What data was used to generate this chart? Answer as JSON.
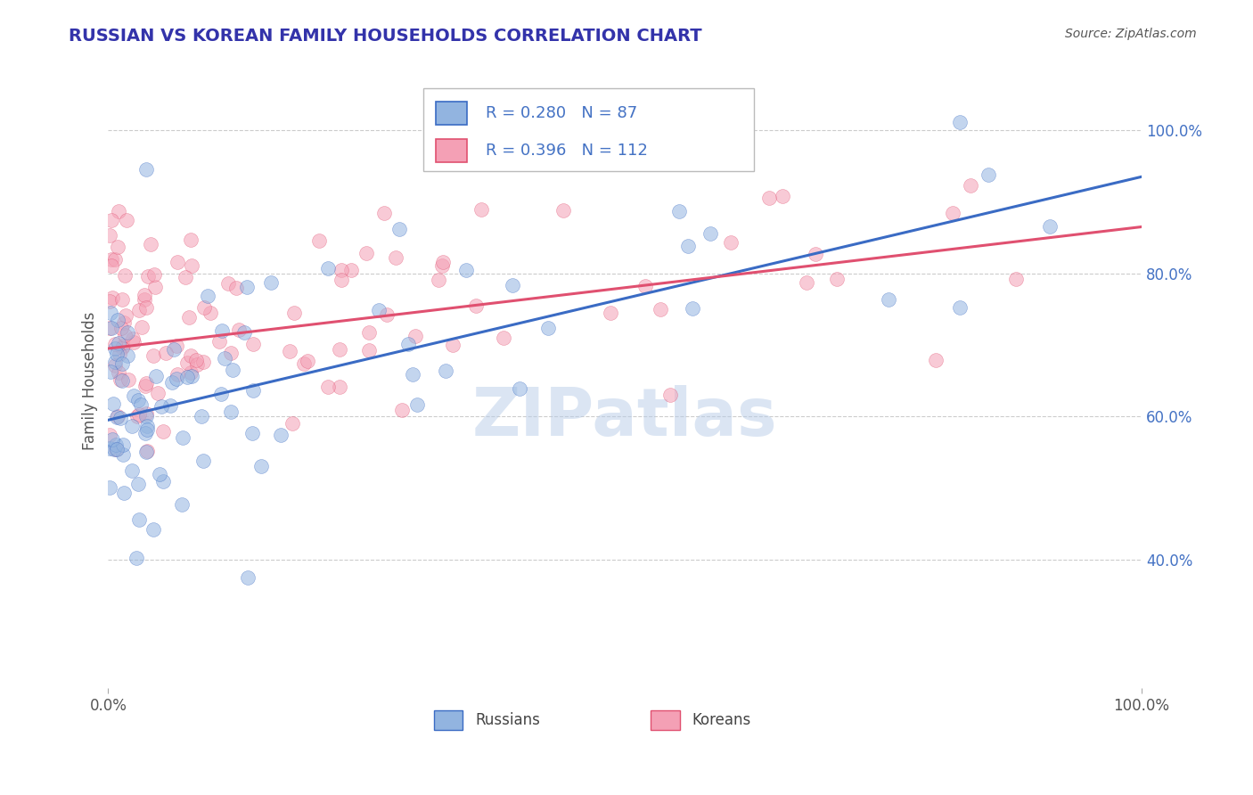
{
  "title": "RUSSIAN VS KOREAN FAMILY HOUSEHOLDS CORRELATION CHART",
  "source": "Source: ZipAtlas.com",
  "ylabel": "Family Households",
  "legend_russians": "Russians",
  "legend_koreans": "Koreans",
  "r_russian": 0.28,
  "n_russian": 87,
  "r_korean": 0.396,
  "n_korean": 112,
  "color_russian": "#92B4E0",
  "color_korean": "#F4A0B5",
  "color_russian_line": "#3A6BC4",
  "color_korean_line": "#E05070",
  "color_r_value": "#4472C4",
  "watermark": "ZIPatlas",
  "right_yticks": [
    0.4,
    0.6,
    0.8,
    1.0
  ],
  "right_ytick_labels": [
    "40.0%",
    "60.0%",
    "80.0%",
    "100.0%"
  ],
  "xmin": 0.0,
  "xmax": 1.0,
  "ymin": 0.22,
  "ymax": 1.08,
  "rus_line_x0": 0.0,
  "rus_line_x1": 1.0,
  "rus_line_y0": 0.595,
  "rus_line_y1": 0.935,
  "kor_line_x0": 0.0,
  "kor_line_x1": 1.0,
  "kor_line_y0": 0.695,
  "kor_line_y1": 0.865
}
